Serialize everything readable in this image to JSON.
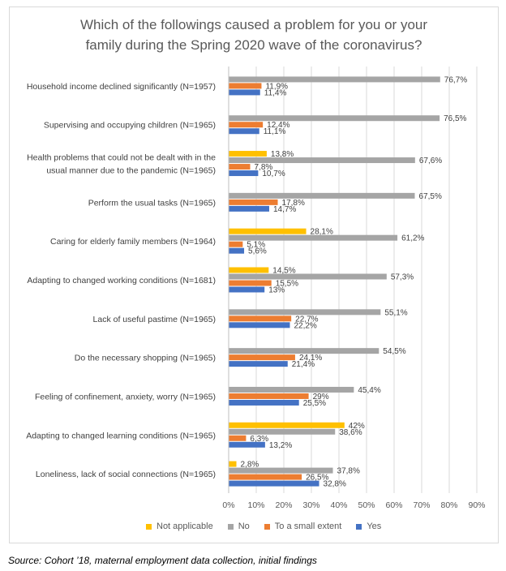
{
  "title_line1": "Which of the followings caused a problem for you or your",
  "title_line2": "family during the Spring 2020 wave of the coronavirus?",
  "source": "Source: Cohort ’18, maternal employment data collection, initial findings",
  "colors": {
    "not_applicable": "#ffc000",
    "no": "#a5a5a5",
    "small_extent": "#ed7d31",
    "yes": "#4472c4"
  },
  "chart_data": {
    "type": "bar",
    "orientation": "horizontal",
    "title": "Which of the followings caused a problem for you or your family during the Spring 2020 wave of the coronavirus?",
    "xlim": [
      0,
      90
    ],
    "x_ticks": [
      "0%",
      "10%",
      "20%",
      "30%",
      "40%",
      "50%",
      "60%",
      "70%",
      "80%",
      "90%"
    ],
    "grid": true,
    "legend_position": "bottom",
    "categories": [
      {
        "label": [
          "Household income declined significantly (N=1957)"
        ]
      },
      {
        "label": [
          "Supervising and occupying children (N=1965)"
        ]
      },
      {
        "label": [
          "Health problems that could not be dealt with in the",
          "usual manner due to the pandemic (N=1965)"
        ]
      },
      {
        "label": [
          "Perform the usual tasks (N=1965)"
        ]
      },
      {
        "label": [
          "Caring for elderly family members (N=1964)"
        ]
      },
      {
        "label": [
          "Adapting to changed working conditions (N=1681)"
        ]
      },
      {
        "label": [
          "Lack of useful pastime (N=1965)"
        ]
      },
      {
        "label": [
          "Do the necessary shopping (N=1965)"
        ]
      },
      {
        "label": [
          "Feeling of confinement, anxiety, worry  (N=1965)"
        ]
      },
      {
        "label": [
          "Adapting to changed learning conditions (N=1965)"
        ]
      },
      {
        "label": [
          "Loneliness, lack of social connections (N=1965)"
        ]
      }
    ],
    "series": [
      {
        "name": "Not applicable",
        "color": "#ffc000",
        "values": [
          null,
          null,
          13.8,
          null,
          28.1,
          14.5,
          null,
          null,
          null,
          42,
          2.8
        ],
        "labels": [
          null,
          null,
          "13,8%",
          null,
          "28,1%",
          "14,5%",
          null,
          null,
          null,
          "42%",
          "2,8%"
        ]
      },
      {
        "name": "No",
        "color": "#a5a5a5",
        "values": [
          76.7,
          76.5,
          67.6,
          67.5,
          61.2,
          57.3,
          55.1,
          54.5,
          45.4,
          38.6,
          37.8
        ],
        "labels": [
          "76,7%",
          "76,5%",
          "67,6%",
          "67,5%",
          "61,2%",
          "57,3%",
          "55,1%",
          "54,5%",
          "45,4%",
          "38,6%",
          "37,8%"
        ]
      },
      {
        "name": "To a small extent",
        "color": "#ed7d31",
        "values": [
          11.9,
          12.4,
          7.8,
          17.8,
          5.1,
          15.5,
          22.7,
          24.1,
          29,
          6.3,
          26.5
        ],
        "labels": [
          "11,9%",
          "12,4%",
          "7,8%",
          "17,8%",
          "5,1%",
          "15,5%",
          "22,7%",
          "24,1%",
          "29%",
          "6,3%",
          "26,5%"
        ]
      },
      {
        "name": "Yes",
        "color": "#4472c4",
        "values": [
          11.4,
          11.1,
          10.7,
          14.7,
          5.6,
          13,
          22.2,
          21.4,
          25.5,
          13.2,
          32.8
        ],
        "labels": [
          "11,4%",
          "11,1%",
          "10,7%",
          "14,7%",
          "5,6%",
          "13%",
          "22,2%",
          "21,4%",
          "25,5%",
          "13,2%",
          "32,8%"
        ]
      }
    ]
  }
}
